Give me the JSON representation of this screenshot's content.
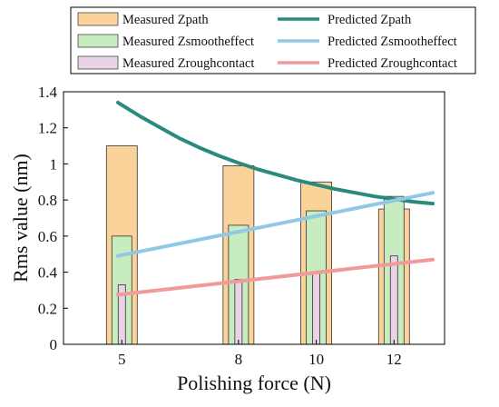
{
  "chart_data": {
    "type": "bar",
    "xlabel": "Polishing force (N)",
    "ylabel": "Rms value (nm)",
    "ylim": [
      0,
      1.4
    ],
    "xlim": [
      3.5,
      13.3
    ],
    "yticks": [
      "0",
      "0.2",
      "0.4",
      "0.6",
      "0.8",
      "1",
      "1.2",
      "1.4"
    ],
    "xticks": [
      5,
      8,
      10,
      12
    ],
    "x": [
      5,
      8,
      10,
      12
    ],
    "bars": [
      {
        "name": "Measured Zpath",
        "values": [
          1.1,
          0.99,
          0.9,
          0.75
        ],
        "color": "#fbd39a"
      },
      {
        "name": "Measured Zsmootheffect",
        "values": [
          0.6,
          0.66,
          0.74,
          0.82
        ],
        "color": "#c7ecc0"
      },
      {
        "name": "Measured Zroughcontact",
        "values": [
          0.33,
          0.36,
          0.4,
          0.49
        ],
        "color": "#ead3e6"
      }
    ],
    "lines": [
      {
        "name": "Predicted Zpath",
        "x": [
          4.9,
          5.5,
          6,
          6.5,
          7,
          7.5,
          8,
          8.5,
          9,
          9.5,
          10,
          10.5,
          11,
          11.5,
          12,
          12.5,
          13
        ],
        "values": [
          1.34,
          1.26,
          1.2,
          1.14,
          1.09,
          1.045,
          1.005,
          0.97,
          0.94,
          0.91,
          0.885,
          0.86,
          0.84,
          0.82,
          0.805,
          0.79,
          0.78
        ],
        "color": "#2b8a7e"
      },
      {
        "name": "Predicted Zsmootheffect",
        "x": [
          4.9,
          13
        ],
        "values": [
          0.49,
          0.84
        ],
        "color": "#8fc9e6"
      },
      {
        "name": "Predicted Zroughcontact",
        "x": [
          4.9,
          13
        ],
        "values": [
          0.275,
          0.47
        ],
        "color": "#f19a9c"
      }
    ],
    "grid": false,
    "legend_position": "top"
  }
}
